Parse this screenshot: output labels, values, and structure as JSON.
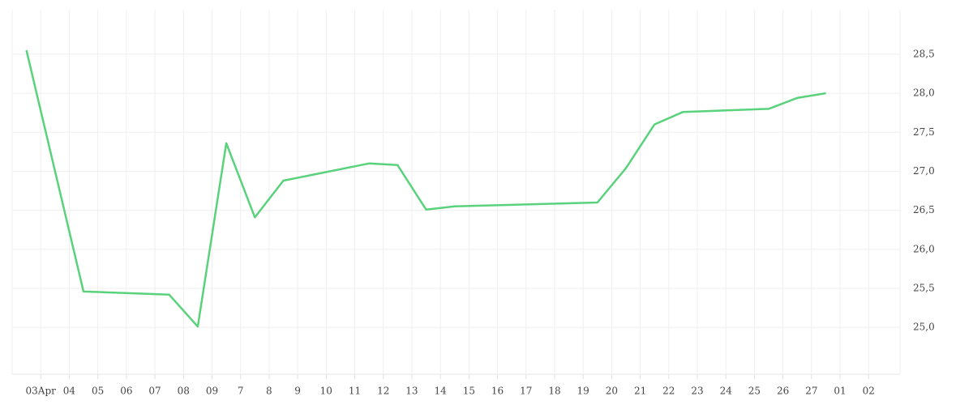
{
  "chart_data": {
    "type": "line",
    "x": [
      -0.5,
      1.5,
      4.5,
      5.5,
      6.5,
      7.5,
      8.5,
      11.5,
      12.5,
      13.5,
      14.5,
      19.5,
      20.5,
      21.5,
      22.5,
      25.5,
      26.5,
      27.5
    ],
    "series": [
      {
        "color": "#5ad27c",
        "values": [
          28.55,
          25.46,
          25.42,
          25.01,
          27.36,
          26.41,
          26.88,
          27.1,
          27.08,
          26.51,
          26.55,
          26.6,
          27.04,
          27.6,
          27.76,
          27.8,
          27.94,
          28.0
        ]
      }
    ],
    "xlim": [
      -1.0,
      30.1
    ],
    "xticks": [
      {
        "value": 0,
        "label": "03Apr"
      },
      {
        "value": 1,
        "label": "04"
      },
      {
        "value": 2,
        "label": "05"
      },
      {
        "value": 3,
        "label": "06"
      },
      {
        "value": 4,
        "label": "07"
      },
      {
        "value": 5,
        "label": "08"
      },
      {
        "value": 6,
        "label": "09"
      },
      7,
      8,
      9,
      10,
      11,
      12,
      13,
      14,
      15,
      16,
      17,
      18,
      19,
      20,
      21,
      22,
      23,
      24,
      25,
      26,
      27,
      {
        "value": 28,
        "label": "01"
      },
      {
        "value": 29,
        "label": "02"
      }
    ],
    "ylim": [
      24.4,
      29.07
    ],
    "yticks": [
      {
        "value": 25,
        "label": "25,0"
      },
      {
        "value": 25.5,
        "label": "25,5"
      },
      {
        "value": 26,
        "label": "26,0"
      },
      {
        "value": 26.5,
        "label": "26,5"
      },
      {
        "value": 27,
        "label": "27,0"
      },
      {
        "value": 27.5,
        "label": "27,5"
      },
      {
        "value": 28,
        "label": "28,0"
      },
      {
        "value": 28.5,
        "label": "28,5"
      }
    ],
    "grid": true
  }
}
